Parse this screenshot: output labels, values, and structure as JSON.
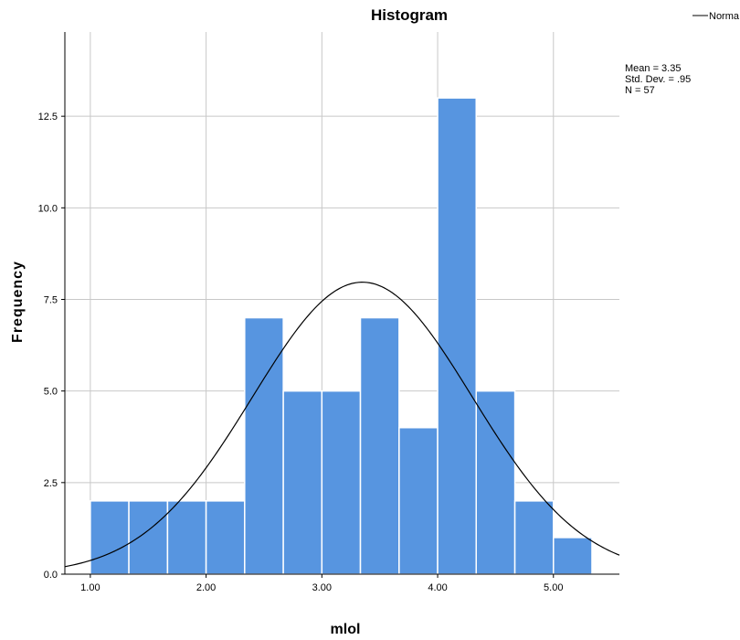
{
  "chart_data": {
    "type": "histogram",
    "title": "Histogram",
    "xlabel": "mlol",
    "ylabel": "Frequency",
    "x_ticks": [
      "1.00",
      "2.00",
      "3.00",
      "4.00",
      "5.00"
    ],
    "y_ticks": [
      "0.0",
      "2.5",
      "5.0",
      "7.5",
      "10.0",
      "12.5"
    ],
    "xlim": [
      0.78,
      5.57
    ],
    "ylim": [
      0,
      14.8
    ],
    "bin_width": 0.333,
    "bins": [
      {
        "start": 1.0,
        "end": 1.333,
        "count": 2
      },
      {
        "start": 1.333,
        "end": 1.667,
        "count": 2
      },
      {
        "start": 1.667,
        "end": 2.0,
        "count": 2
      },
      {
        "start": 2.0,
        "end": 2.333,
        "count": 2
      },
      {
        "start": 2.333,
        "end": 2.667,
        "count": 7
      },
      {
        "start": 2.667,
        "end": 3.0,
        "count": 5
      },
      {
        "start": 3.0,
        "end": 3.333,
        "count": 5
      },
      {
        "start": 3.333,
        "end": 3.667,
        "count": 7
      },
      {
        "start": 3.667,
        "end": 4.0,
        "count": 4
      },
      {
        "start": 4.0,
        "end": 4.333,
        "count": 13
      },
      {
        "start": 4.333,
        "end": 4.667,
        "count": 5
      },
      {
        "start": 4.667,
        "end": 5.0,
        "count": 2
      },
      {
        "start": 5.0,
        "end": 5.333,
        "count": 1
      }
    ],
    "normal_curve": {
      "mean": 3.35,
      "sd": 0.95,
      "n": 57
    },
    "stats": [
      "Mean = 3.35",
      "Std. Dev. = .95",
      "N = 57"
    ],
    "legend": {
      "label": "Norma",
      "position": "top-right"
    },
    "grid": true,
    "colors": {
      "bar": "#5795e0",
      "bar_edge": "#ffffff",
      "grid": "#c8c8c8",
      "curve": "#000000"
    }
  }
}
